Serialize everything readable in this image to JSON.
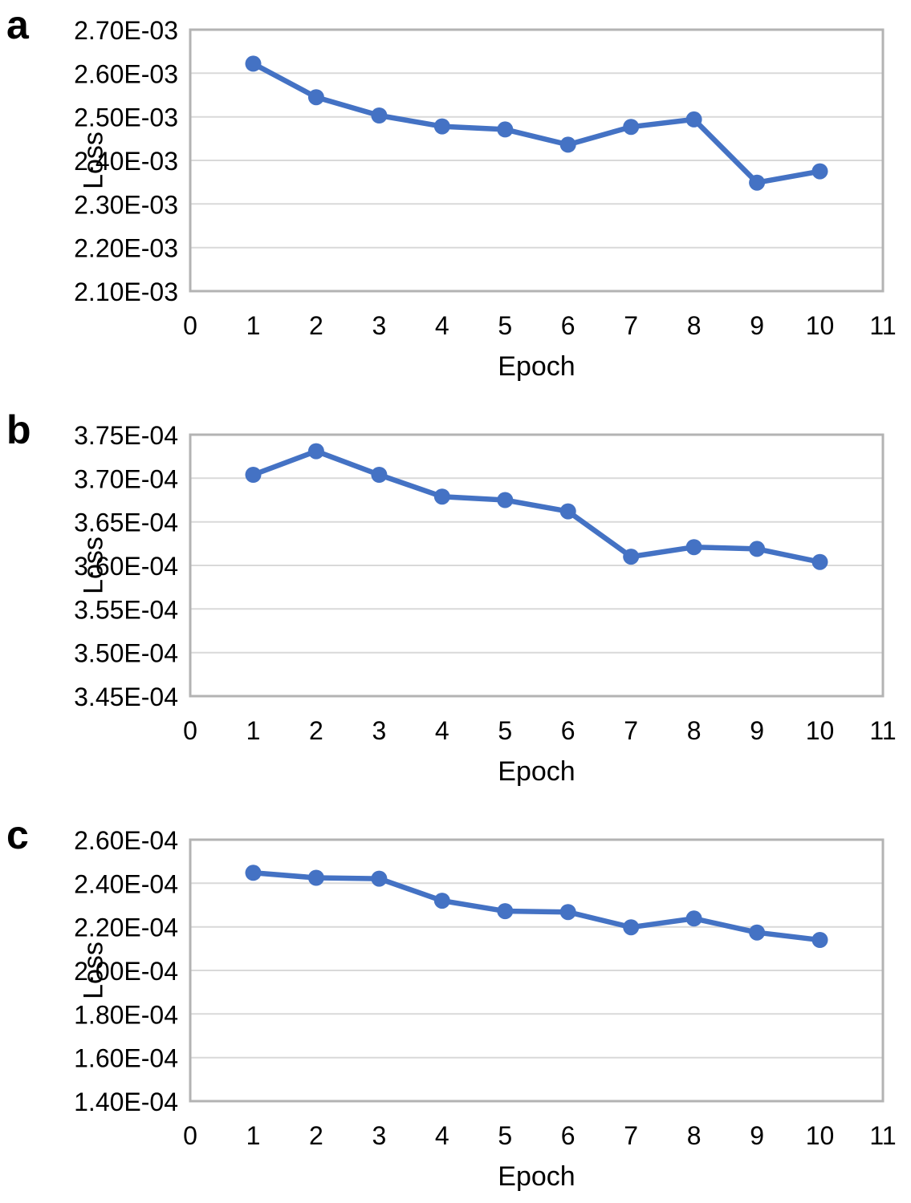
{
  "style": {
    "accent_color": "#4472C4",
    "grid_color": "#D9D9D9",
    "plot_border_color": "#B3B3B3",
    "text_color": "#000000",
    "background_color": "#FFFFFF"
  },
  "chart_data": [
    {
      "type": "line",
      "panel_label": "a",
      "title": "",
      "xlabel": "Epoch",
      "ylabel": "Loss",
      "legend": "none",
      "grid": "horizontal",
      "marker": "circle",
      "xlim": [
        0,
        11
      ],
      "ylim": [
        0.0021,
        0.0027
      ],
      "xtick_labels": [
        "0",
        "1",
        "2",
        "3",
        "4",
        "5",
        "6",
        "7",
        "8",
        "9",
        "10",
        "11"
      ],
      "ytick_labels": [
        "2.70E-03",
        "2.60E-03",
        "2.50E-03",
        "2.40E-03",
        "2.30E-03",
        "2.20E-03",
        "2.10E-03"
      ],
      "x": [
        1,
        2,
        3,
        4,
        5,
        6,
        7,
        8,
        9,
        10
      ],
      "values": [
        0.002622,
        0.002545,
        0.002503,
        0.002478,
        0.002471,
        0.002436,
        0.002477,
        0.002494,
        0.002349,
        0.002375
      ]
    },
    {
      "type": "line",
      "panel_label": "b",
      "title": "",
      "xlabel": "Epoch",
      "ylabel": "Loss",
      "legend": "none",
      "grid": "horizontal",
      "marker": "circle",
      "xlim": [
        0,
        11
      ],
      "ylim": [
        0.000345,
        0.000375
      ],
      "xtick_labels": [
        "0",
        "1",
        "2",
        "3",
        "4",
        "5",
        "6",
        "7",
        "8",
        "9",
        "10",
        "11"
      ],
      "ytick_labels": [
        "3.75E-04",
        "3.70E-04",
        "3.65E-04",
        "3.60E-04",
        "3.55E-04",
        "3.50E-04",
        "3.45E-04"
      ],
      "x": [
        1,
        2,
        3,
        4,
        5,
        6,
        7,
        8,
        9,
        10
      ],
      "values": [
        0.0003704,
        0.0003731,
        0.0003704,
        0.0003679,
        0.0003675,
        0.0003662,
        0.000361,
        0.0003621,
        0.0003619,
        0.0003604
      ]
    },
    {
      "type": "line",
      "panel_label": "c",
      "title": "",
      "xlabel": "Epoch",
      "ylabel": "Loss",
      "legend": "none",
      "grid": "horizontal",
      "marker": "circle",
      "xlim": [
        0,
        11
      ],
      "ylim": [
        0.00014,
        0.00026
      ],
      "xtick_labels": [
        "0",
        "1",
        "2",
        "3",
        "4",
        "5",
        "6",
        "7",
        "8",
        "9",
        "10",
        "11"
      ],
      "ytick_labels": [
        "2.60E-04",
        "2.40E-04",
        "2.20E-04",
        "2.00E-04",
        "1.80E-04",
        "1.60E-04",
        "1.40E-04"
      ],
      "x": [
        1,
        2,
        3,
        4,
        5,
        6,
        7,
        8,
        9,
        10
      ],
      "values": [
        0.0002448,
        0.0002425,
        0.0002421,
        0.000232,
        0.0002272,
        0.0002268,
        0.0002198,
        0.0002238,
        0.0002174,
        0.000214
      ]
    }
  ]
}
